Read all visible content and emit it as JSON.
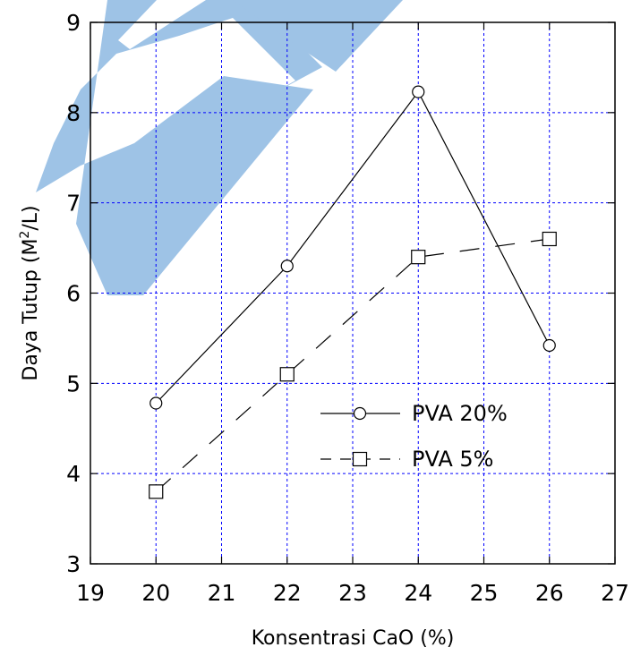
{
  "chart_data": {
    "type": "line",
    "xlabel": "Konsentrasi CaO (%)",
    "ylabel_main": "Daya Tutup (M",
    "ylabel_sup": "2",
    "ylabel_tail": "/L)",
    "xlim": [
      19,
      27
    ],
    "ylim": [
      3,
      9
    ],
    "xticks": [
      19,
      20,
      21,
      22,
      23,
      24,
      25,
      26,
      27
    ],
    "yticks": [
      3,
      4,
      5,
      6,
      7,
      8,
      9
    ],
    "grid": true,
    "legend_position": "lower-right",
    "series": [
      {
        "name": "PVA 20%",
        "marker": "circle",
        "line": "solid",
        "x": [
          20,
          22,
          24,
          26
        ],
        "y": [
          4.78,
          6.3,
          8.23,
          5.42
        ]
      },
      {
        "name": "PVA 5%",
        "marker": "square",
        "line": "dashed",
        "x": [
          20,
          22,
          24,
          26
        ],
        "y": [
          3.8,
          5.1,
          6.4,
          6.6
        ]
      }
    ],
    "colors": {
      "grid": "#0000ff",
      "line": "#000000",
      "watermark": "#9ec3e6"
    }
  }
}
